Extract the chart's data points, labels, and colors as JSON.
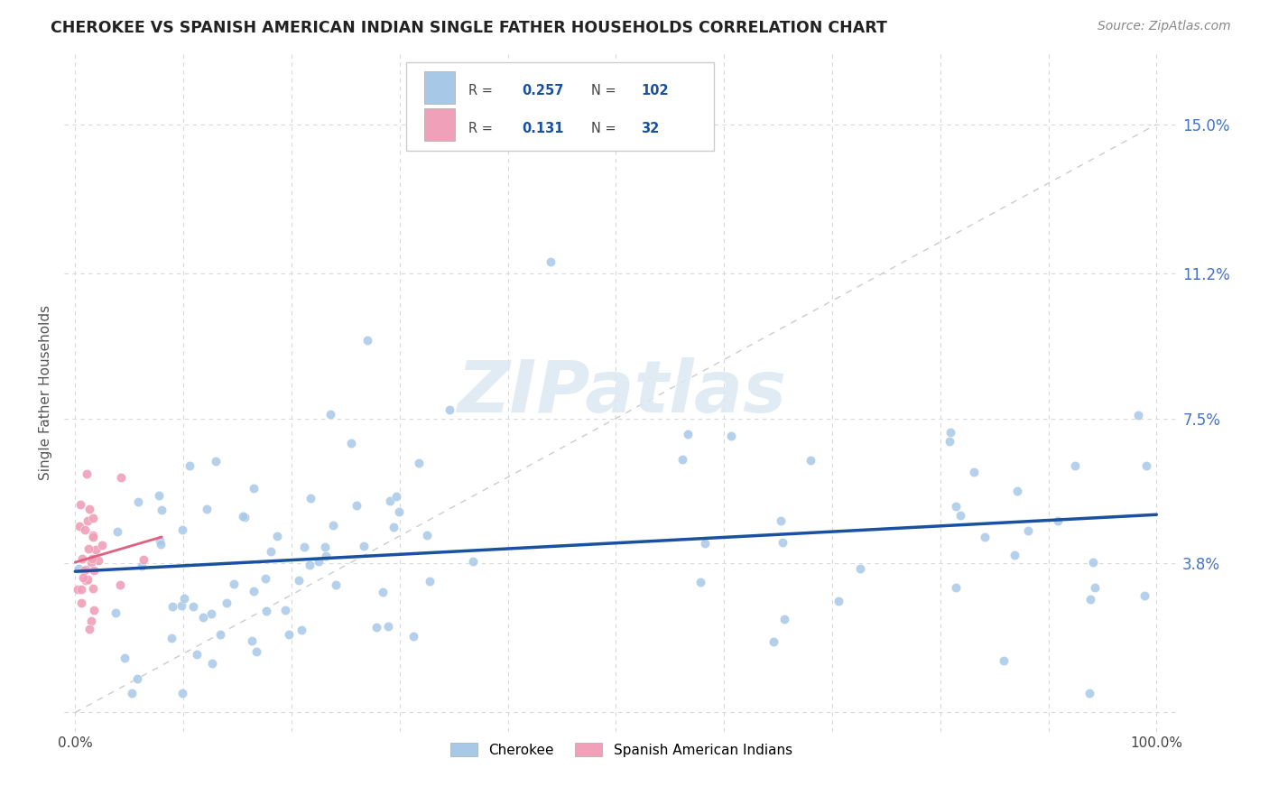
{
  "title": "CHEROKEE VS SPANISH AMERICAN INDIAN SINGLE FATHER HOUSEHOLDS CORRELATION CHART",
  "source": "Source: ZipAtlas.com",
  "ylabel": "Single Father Households",
  "background_color": "#ffffff",
  "grid_color": "#d8d8d8",
  "cherokee_color": "#a8c8e8",
  "spanish_color": "#f0a0b8",
  "cherokee_line_color": "#1a50a0",
  "spanish_line_color": "#e06080",
  "watermark": "ZIPatlas",
  "legend_R_cherokee": "0.257",
  "legend_N_cherokee": "102",
  "legend_R_spanish": "0.131",
  "legend_N_spanish": "32",
  "yticks": [
    0.0,
    0.038,
    0.075,
    0.112,
    0.15
  ],
  "ytick_labels": [
    "",
    "3.8%",
    "7.5%",
    "11.2%",
    "15.0%"
  ],
  "ylim": [
    -0.005,
    0.168
  ],
  "xlim": [
    -0.01,
    1.02
  ]
}
